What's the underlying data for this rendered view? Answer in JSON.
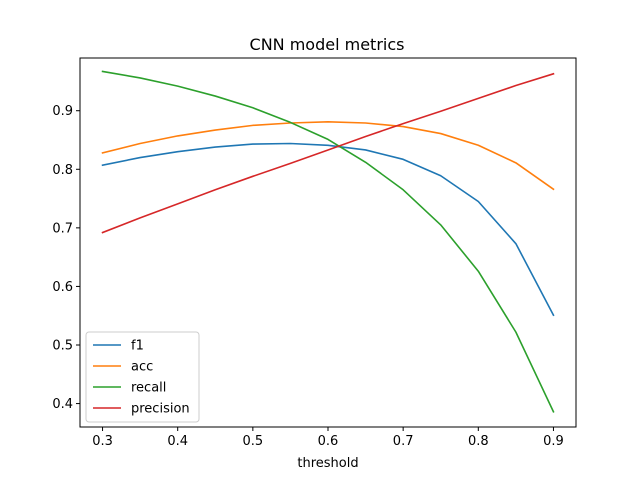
{
  "chart_data": {
    "type": "line",
    "title": "CNN model metrics",
    "xlabel": "threshold",
    "ylabel": "",
    "xlim": [
      0.27,
      0.93
    ],
    "ylim": [
      0.36,
      0.99
    ],
    "x": [
      0.3,
      0.35,
      0.4,
      0.45,
      0.5,
      0.55,
      0.6,
      0.65,
      0.7,
      0.75,
      0.8,
      0.85,
      0.9
    ],
    "xticks": [
      "0.3",
      "0.4",
      "0.5",
      "0.6",
      "0.7",
      "0.8",
      "0.9"
    ],
    "yticks": [
      "0.4",
      "0.5",
      "0.6",
      "0.7",
      "0.8",
      "0.9"
    ],
    "legend_position": "lower-left",
    "grid": false,
    "series": [
      {
        "name": "f1",
        "color": "#1f77b4",
        "values": [
          0.807,
          0.82,
          0.83,
          0.838,
          0.843,
          0.844,
          0.841,
          0.833,
          0.817,
          0.789,
          0.745,
          0.673,
          0.551
        ]
      },
      {
        "name": "acc",
        "color": "#ff7f0e",
        "values": [
          0.828,
          0.844,
          0.857,
          0.867,
          0.875,
          0.879,
          0.881,
          0.879,
          0.873,
          0.861,
          0.841,
          0.811,
          0.766
        ]
      },
      {
        "name": "recall",
        "color": "#2ca02c",
        "values": [
          0.967,
          0.956,
          0.942,
          0.925,
          0.905,
          0.88,
          0.851,
          0.812,
          0.765,
          0.705,
          0.626,
          0.522,
          0.386
        ]
      },
      {
        "name": "precision",
        "color": "#d62728",
        "values": [
          0.692,
          0.717,
          0.741,
          0.765,
          0.788,
          0.81,
          0.833,
          0.856,
          0.878,
          0.899,
          0.921,
          0.943,
          0.963
        ]
      }
    ]
  }
}
